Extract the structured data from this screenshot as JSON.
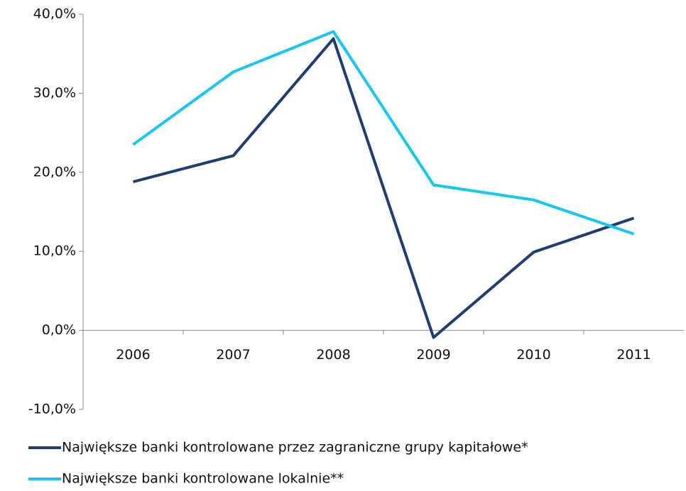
{
  "chart_data": {
    "type": "line",
    "categories": [
      "2006",
      "2007",
      "2008",
      "2009",
      "2010",
      "2011"
    ],
    "series": [
      {
        "name": "Największe banki kontrolowane przez zagraniczne grupy kapitałowe*",
        "color": "#1f3d6e",
        "values": [
          18.8,
          22.1,
          36.9,
          -0.9,
          9.9,
          14.2
        ]
      },
      {
        "name": "Największe banki kontrolowane lokalnie**",
        "color": "#17c7f0",
        "values": [
          23.5,
          32.7,
          37.8,
          18.4,
          16.5,
          12.2
        ]
      }
    ],
    "ylim": [
      -10,
      40
    ],
    "yticks": [
      {
        "value": -10,
        "label": "-10,0%"
      },
      {
        "value": 0,
        "label": "0,0%"
      },
      {
        "value": 10,
        "label": "10,0%"
      },
      {
        "value": 20,
        "label": "20,0%"
      },
      {
        "value": 30,
        "label": "30,0%"
      },
      {
        "value": 40,
        "label": "40,0%"
      }
    ],
    "grid": false
  }
}
